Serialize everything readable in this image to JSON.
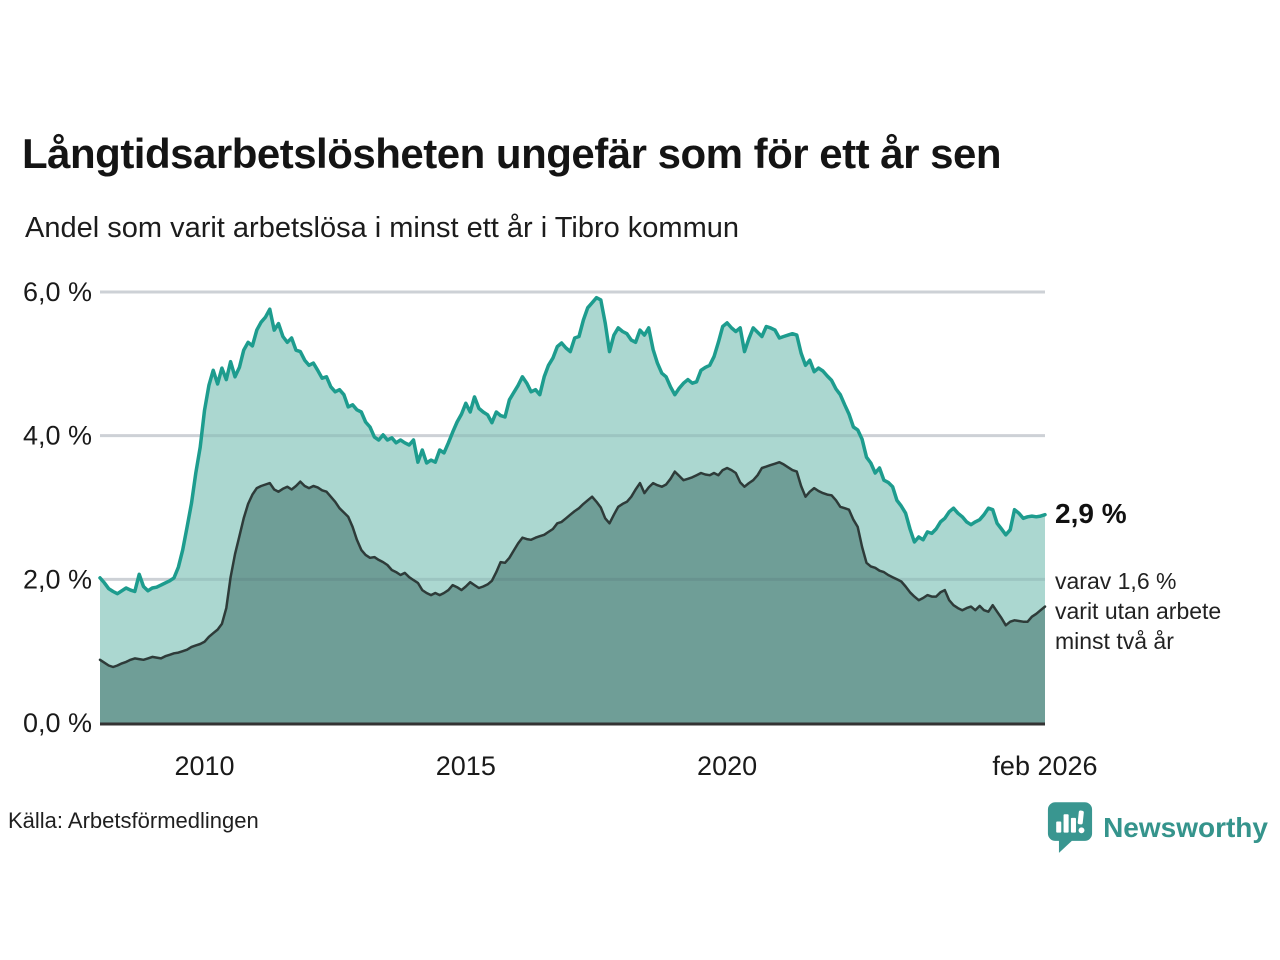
{
  "header": {
    "title": "Långtidsarbetslösheten ungefär som för ett år sen",
    "subtitle": "Andel som varit arbetslösa i minst ett år i Tibro kommun"
  },
  "annotations": {
    "latest_value": "2,9 %",
    "sub_line1": "varav 1,6 %",
    "sub_line2": "varit utan arbete",
    "sub_line3": "minst två år"
  },
  "footer": {
    "source": "Källa: Arbetsförmedlingen",
    "logo_text": "Newsworthy"
  },
  "colors": {
    "line_total": "#1d9c8e",
    "fill_total": "#abd7d0",
    "line_twoyear": "#2e3b39",
    "fill_twoyear": "#6f9e97",
    "gridline": "#e3e5e9",
    "axis": "#333333",
    "logo_teal": "#399690",
    "text": "#1a1a1a"
  },
  "chart_data": {
    "type": "area",
    "title": "Långtidsarbetslösheten ungefär som för ett år sen",
    "subtitle": "Andel som varit arbetslösa i minst ett år i Tibro kommun",
    "unit": "%",
    "x_start_year": 2008,
    "x_start_month": 1,
    "x_step": "monthly",
    "x_end_label": "feb 2026",
    "ylim": [
      0,
      6.3
    ],
    "grid": true,
    "legend": false,
    "yticks": [
      {
        "label": "0,0 %",
        "value": 0
      },
      {
        "label": "2,0 %",
        "value": 2
      },
      {
        "label": "4,0 %",
        "value": 4
      },
      {
        "label": "6,0 %",
        "value": 6
      }
    ],
    "xticks": [
      {
        "label": "2010",
        "t": 2010
      },
      {
        "label": "2015",
        "t": 2015
      },
      {
        "label": "2020",
        "t": 2020
      },
      {
        "label": "feb 2026",
        "t": 2026.083
      }
    ],
    "series": [
      {
        "name": "Andel arbetslösa minst ett år",
        "line_color": "#1d9c8e",
        "fill_color": "#abd7d0",
        "line_width": 3.5,
        "latest_value": 2.9,
        "values": [
          2.02,
          1.95,
          1.87,
          1.83,
          1.8,
          1.84,
          1.88,
          1.85,
          1.83,
          2.07,
          1.9,
          1.84,
          1.88,
          1.89,
          1.92,
          1.95,
          1.98,
          2.02,
          2.17,
          2.41,
          2.73,
          3.06,
          3.48,
          3.84,
          4.35,
          4.7,
          4.91,
          4.72,
          4.94,
          4.78,
          5.03,
          4.82,
          4.95,
          5.19,
          5.3,
          5.25,
          5.47,
          5.58,
          5.65,
          5.76,
          5.47,
          5.56,
          5.38,
          5.3,
          5.36,
          5.19,
          5.17,
          5.05,
          4.98,
          5.01,
          4.91,
          4.8,
          4.82,
          4.68,
          4.61,
          4.64,
          4.57,
          4.4,
          4.43,
          4.36,
          4.33,
          4.19,
          4.12,
          3.98,
          3.94,
          4.01,
          3.94,
          3.97,
          3.9,
          3.94,
          3.9,
          3.87,
          3.94,
          3.63,
          3.8,
          3.62,
          3.66,
          3.63,
          3.8,
          3.76,
          3.9,
          4.05,
          4.19,
          4.3,
          4.45,
          4.33,
          4.54,
          4.38,
          4.33,
          4.29,
          4.18,
          4.33,
          4.28,
          4.26,
          4.5,
          4.6,
          4.7,
          4.82,
          4.73,
          4.61,
          4.64,
          4.57,
          4.82,
          4.98,
          5.08,
          5.24,
          5.29,
          5.22,
          5.17,
          5.36,
          5.38,
          5.61,
          5.78,
          5.85,
          5.92,
          5.89,
          5.57,
          5.17,
          5.4,
          5.5,
          5.45,
          5.42,
          5.33,
          5.3,
          5.47,
          5.4,
          5.5,
          5.2,
          5.01,
          4.87,
          4.82,
          4.68,
          4.57,
          4.66,
          4.73,
          4.78,
          4.73,
          4.75,
          4.91,
          4.95,
          4.98,
          5.1,
          5.3,
          5.52,
          5.57,
          5.5,
          5.45,
          5.5,
          5.17,
          5.35,
          5.5,
          5.44,
          5.38,
          5.52,
          5.5,
          5.47,
          5.36,
          5.38,
          5.4,
          5.42,
          5.4,
          5.15,
          4.98,
          5.05,
          4.89,
          4.94,
          4.9,
          4.83,
          4.77,
          4.65,
          4.57,
          4.43,
          4.3,
          4.12,
          4.08,
          3.95,
          3.7,
          3.62,
          3.48,
          3.55,
          3.38,
          3.35,
          3.29,
          3.1,
          3.02,
          2.92,
          2.7,
          2.52,
          2.59,
          2.55,
          2.66,
          2.64,
          2.7,
          2.8,
          2.85,
          2.94,
          2.99,
          2.92,
          2.87,
          2.8,
          2.76,
          2.8,
          2.83,
          2.9,
          2.99,
          2.97,
          2.78,
          2.7,
          2.62,
          2.69,
          2.97,
          2.92,
          2.85,
          2.87,
          2.88,
          2.87,
          2.88,
          2.9
        ]
      },
      {
        "name": "varav utan arbete minst två år",
        "line_color": "#2e3b39",
        "fill_color": "#6f9e97",
        "line_width": 2.5,
        "latest_value": 1.6,
        "values": [
          0.88,
          0.84,
          0.8,
          0.78,
          0.8,
          0.83,
          0.85,
          0.88,
          0.9,
          0.89,
          0.88,
          0.9,
          0.92,
          0.91,
          0.9,
          0.93,
          0.95,
          0.97,
          0.98,
          1.0,
          1.02,
          1.06,
          1.08,
          1.1,
          1.13,
          1.2,
          1.25,
          1.3,
          1.38,
          1.6,
          2.03,
          2.35,
          2.6,
          2.85,
          3.05,
          3.18,
          3.27,
          3.3,
          3.32,
          3.34,
          3.25,
          3.22,
          3.26,
          3.29,
          3.25,
          3.3,
          3.36,
          3.3,
          3.27,
          3.3,
          3.28,
          3.24,
          3.22,
          3.15,
          3.08,
          2.99,
          2.93,
          2.87,
          2.73,
          2.55,
          2.41,
          2.34,
          2.3,
          2.31,
          2.27,
          2.24,
          2.2,
          2.13,
          2.1,
          2.06,
          2.09,
          2.03,
          1.99,
          1.95,
          1.85,
          1.81,
          1.78,
          1.81,
          1.78,
          1.81,
          1.85,
          1.92,
          1.89,
          1.85,
          1.9,
          1.96,
          1.92,
          1.88,
          1.9,
          1.93,
          1.98,
          2.1,
          2.24,
          2.23,
          2.3,
          2.4,
          2.5,
          2.58,
          2.56,
          2.55,
          2.58,
          2.6,
          2.62,
          2.66,
          2.7,
          2.78,
          2.8,
          2.85,
          2.9,
          2.95,
          2.99,
          3.05,
          3.1,
          3.15,
          3.08,
          3.0,
          2.85,
          2.78,
          2.9,
          3.01,
          3.05,
          3.08,
          3.15,
          3.25,
          3.34,
          3.2,
          3.28,
          3.34,
          3.31,
          3.29,
          3.32,
          3.4,
          3.5,
          3.44,
          3.38,
          3.4,
          3.42,
          3.45,
          3.48,
          3.46,
          3.45,
          3.48,
          3.45,
          3.52,
          3.55,
          3.52,
          3.48,
          3.35,
          3.29,
          3.34,
          3.38,
          3.45,
          3.55,
          3.57,
          3.59,
          3.61,
          3.63,
          3.6,
          3.56,
          3.52,
          3.5,
          3.3,
          3.15,
          3.22,
          3.27,
          3.23,
          3.2,
          3.18,
          3.17,
          3.1,
          3.01,
          2.99,
          2.97,
          2.83,
          2.73,
          2.45,
          2.23,
          2.18,
          2.16,
          2.12,
          2.1,
          2.06,
          2.03,
          2.0,
          1.97,
          1.9,
          1.82,
          1.76,
          1.71,
          1.74,
          1.78,
          1.76,
          1.76,
          1.82,
          1.85,
          1.71,
          1.64,
          1.6,
          1.57,
          1.6,
          1.62,
          1.57,
          1.63,
          1.57,
          1.55,
          1.64,
          1.55,
          1.46,
          1.36,
          1.41,
          1.43,
          1.42,
          1.41,
          1.41,
          1.48,
          1.52,
          1.57,
          1.62
        ]
      }
    ]
  }
}
